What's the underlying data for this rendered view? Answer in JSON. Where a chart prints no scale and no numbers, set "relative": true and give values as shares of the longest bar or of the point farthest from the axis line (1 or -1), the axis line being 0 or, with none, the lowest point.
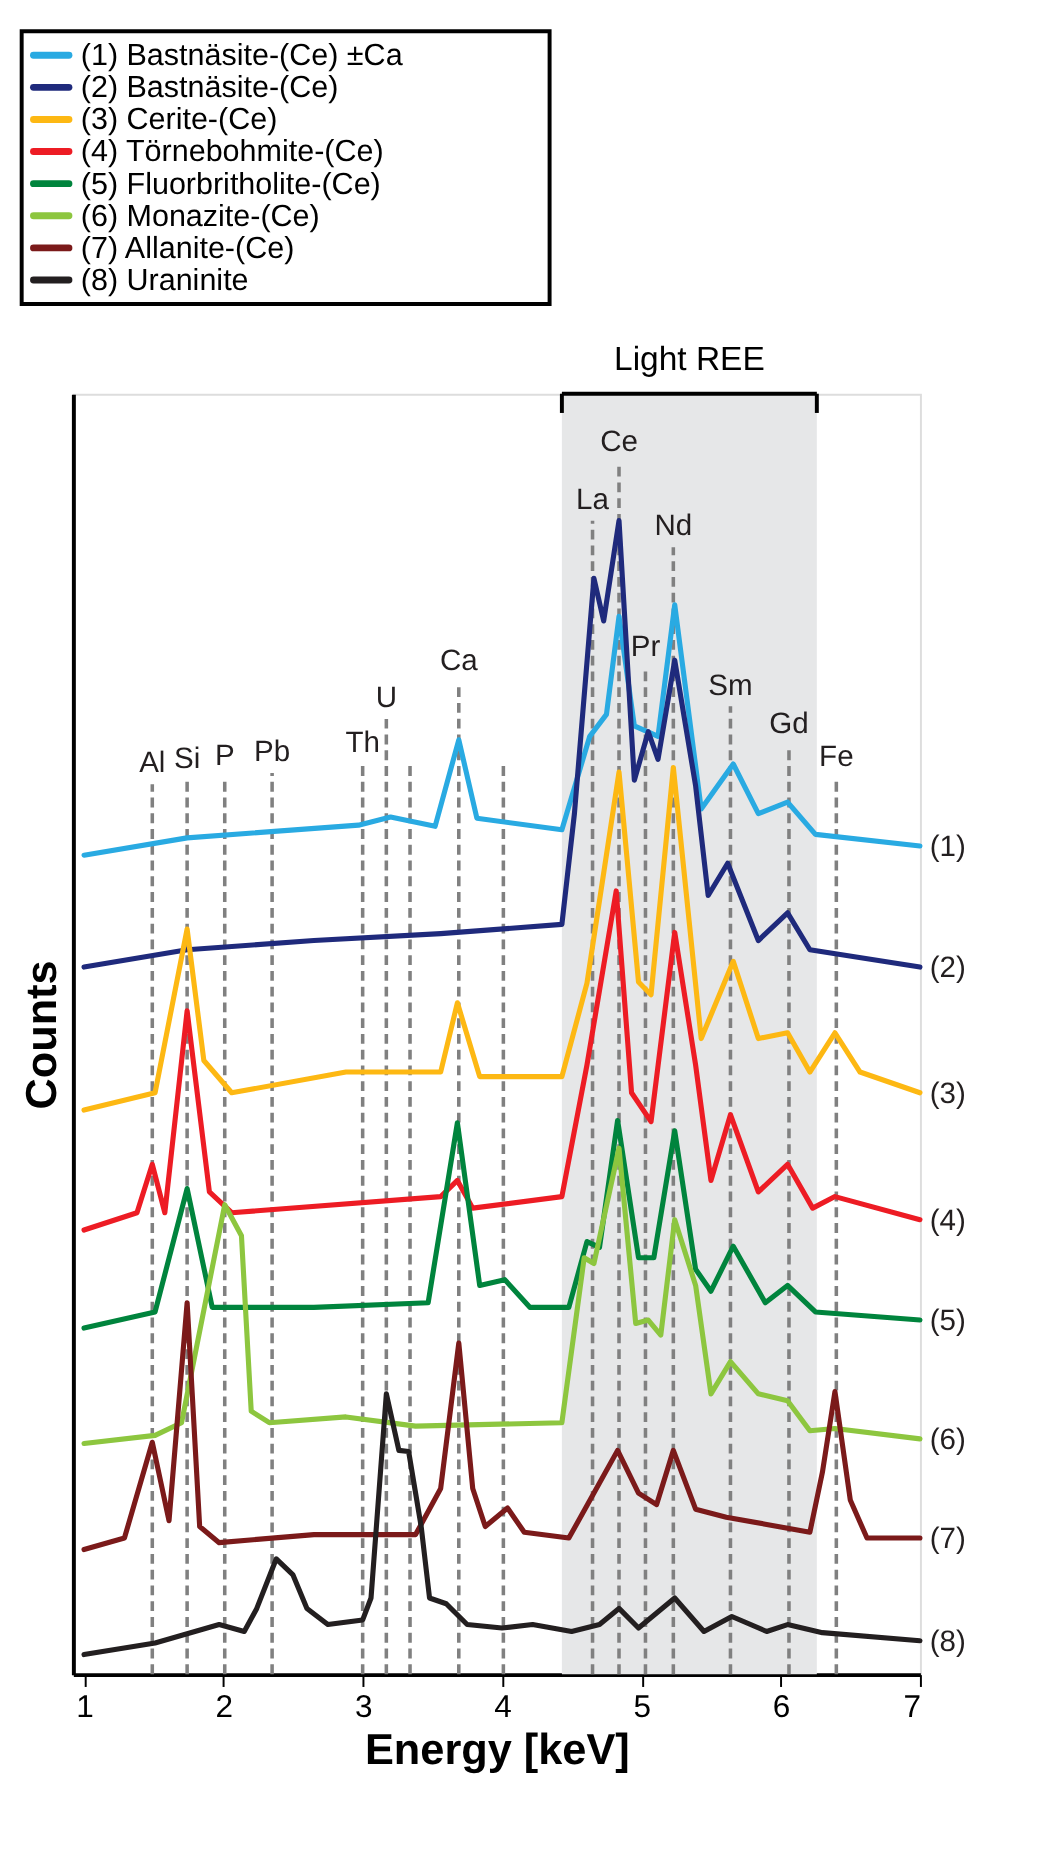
{
  "chart_data": {
    "type": "line",
    "relative": true,
    "xlabel": "Energy [keV]",
    "ylabel": "Counts",
    "xlim": [
      0.92,
      7
    ],
    "xticks": [
      1,
      2,
      3,
      4,
      5,
      6,
      7
    ],
    "grid": false,
    "legend": "top left",
    "line_style": "solid",
    "marker": "none",
    "series": [
      {
        "name": "(1) Bastnäsite-(Ce) ±Ca",
        "color": "#29aae2",
        "x": [
          1.0,
          1.74,
          2.97,
          3.2,
          3.52,
          3.69,
          3.82,
          4.43,
          4.63,
          4.75,
          4.84,
          4.95,
          5.12,
          5.24,
          5.43,
          5.66,
          5.84,
          6.05,
          6.25,
          7.0
        ],
        "values": [
          0.71,
          0.725,
          0.736,
          0.743,
          0.735,
          0.81,
          0.742,
          0.732,
          0.813,
          0.832,
          0.917,
          0.822,
          0.813,
          0.927,
          0.75,
          0.789,
          0.746,
          0.756,
          0.728,
          0.718
        ]
      },
      {
        "name": "(2) Bastnäsite-(Ce)",
        "color": "#1f2a7c",
        "x": [
          1.0,
          1.74,
          2.65,
          3.56,
          4.43,
          4.52,
          4.66,
          4.73,
          4.84,
          4.95,
          5.05,
          5.12,
          5.24,
          5.39,
          5.48,
          5.62,
          5.84,
          6.05,
          6.21,
          7.0
        ],
        "values": [
          0.613,
          0.628,
          0.636,
          0.642,
          0.65,
          0.746,
          0.95,
          0.913,
          1.0,
          0.775,
          0.817,
          0.793,
          0.879,
          0.77,
          0.675,
          0.703,
          0.636,
          0.66,
          0.628,
          0.613
        ]
      },
      {
        "name": "(3) Cerite-(Ce)",
        "color": "#fdb813",
        "x": [
          1.0,
          1.51,
          1.74,
          1.86,
          2.06,
          2.88,
          3.56,
          3.68,
          3.84,
          4.43,
          4.61,
          4.84,
          4.98,
          5.07,
          5.23,
          5.43,
          5.66,
          5.84,
          6.05,
          6.21,
          6.39,
          6.57,
          7.0
        ],
        "values": [
          0.489,
          0.504,
          0.646,
          0.532,
          0.504,
          0.522,
          0.522,
          0.582,
          0.518,
          0.518,
          0.599,
          0.782,
          0.6,
          0.589,
          0.786,
          0.551,
          0.618,
          0.551,
          0.556,
          0.522,
          0.556,
          0.522,
          0.504
        ]
      },
      {
        "name": "(4) Törnebohmite-(Ce)",
        "color": "#ed1c24",
        "x": [
          1.0,
          1.38,
          1.49,
          1.58,
          1.74,
          1.9,
          2.06,
          3.56,
          3.68,
          3.79,
          4.43,
          4.61,
          4.82,
          4.93,
          5.07,
          5.24,
          5.39,
          5.5,
          5.64,
          5.84,
          6.05,
          6.23,
          6.39,
          7.0
        ],
        "values": [
          0.385,
          0.4,
          0.442,
          0.4,
          0.575,
          0.418,
          0.4,
          0.414,
          0.428,
          0.404,
          0.414,
          0.528,
          0.679,
          0.504,
          0.479,
          0.643,
          0.528,
          0.428,
          0.485,
          0.418,
          0.442,
          0.404,
          0.414,
          0.394
        ]
      },
      {
        "name": "(5) Fluorbritholite-(Ce)",
        "color": "#00843d",
        "x": [
          1.0,
          1.51,
          1.74,
          1.92,
          2.65,
          3.47,
          3.68,
          3.84,
          4.02,
          4.2,
          4.48,
          4.61,
          4.7,
          4.83,
          4.98,
          5.09,
          5.24,
          5.39,
          5.5,
          5.66,
          5.89,
          6.05,
          6.25,
          7.0
        ],
        "values": [
          0.3,
          0.314,
          0.421,
          0.318,
          0.318,
          0.322,
          0.478,
          0.337,
          0.342,
          0.318,
          0.318,
          0.375,
          0.37,
          0.48,
          0.361,
          0.361,
          0.471,
          0.351,
          0.332,
          0.371,
          0.322,
          0.337,
          0.314,
          0.307
        ]
      },
      {
        "name": "(6) Monazite-(Ce)",
        "color": "#8dc63f",
        "x": [
          1.0,
          1.51,
          1.7,
          2.01,
          2.13,
          2.2,
          2.33,
          2.88,
          3.38,
          4.43,
          4.59,
          4.66,
          4.84,
          4.96,
          5.05,
          5.14,
          5.24,
          5.39,
          5.5,
          5.64,
          5.84,
          6.05,
          6.21,
          6.39,
          7.0
        ],
        "values": [
          0.2,
          0.207,
          0.218,
          0.407,
          0.38,
          0.228,
          0.218,
          0.223,
          0.215,
          0.218,
          0.361,
          0.356,
          0.456,
          0.304,
          0.307,
          0.294,
          0.394,
          0.337,
          0.243,
          0.271,
          0.243,
          0.237,
          0.211,
          0.213,
          0.204
        ]
      },
      {
        "name": "(7) Allanite-(Ce)",
        "color": "#7b1a1a",
        "x": [
          1.0,
          1.29,
          1.49,
          1.61,
          1.74,
          1.83,
          1.97,
          2.65,
          3.38,
          3.56,
          3.69,
          3.79,
          3.88,
          4.04,
          4.16,
          4.48,
          4.66,
          4.83,
          4.98,
          5.11,
          5.23,
          5.39,
          5.61,
          5.89,
          6.21,
          6.3,
          6.39,
          6.5,
          6.62,
          7.0
        ],
        "values": [
          0.108,
          0.118,
          0.201,
          0.133,
          0.322,
          0.128,
          0.114,
          0.121,
          0.121,
          0.161,
          0.287,
          0.161,
          0.128,
          0.144,
          0.123,
          0.118,
          0.157,
          0.194,
          0.157,
          0.147,
          0.194,
          0.143,
          0.136,
          0.13,
          0.123,
          0.175,
          0.245,
          0.151,
          0.118,
          0.118
        ]
      },
      {
        "name": "(8) Uraninite",
        "color": "#231f20",
        "x": [
          1.0,
          1.51,
          1.97,
          2.15,
          2.24,
          2.38,
          2.5,
          2.6,
          2.75,
          3.0,
          3.06,
          3.17,
          3.26,
          3.33,
          3.42,
          3.48,
          3.6,
          3.75,
          4.0,
          4.22,
          4.5,
          4.7,
          4.84,
          4.98,
          5.24,
          5.45,
          5.65,
          5.9,
          6.05,
          6.3,
          7.0
        ],
        "values": [
          0.017,
          0.027,
          0.043,
          0.037,
          0.057,
          0.1,
          0.086,
          0.057,
          0.043,
          0.047,
          0.066,
          0.243,
          0.194,
          0.193,
          0.128,
          0.066,
          0.061,
          0.043,
          0.04,
          0.043,
          0.037,
          0.043,
          0.057,
          0.04,
          0.066,
          0.037,
          0.05,
          0.037,
          0.043,
          0.036,
          0.029
        ]
      }
    ],
    "bands": [
      {
        "axis": "x",
        "from": 4.43,
        "to": 6.26,
        "label": "Light REE",
        "color": "#e6e7e8"
      }
    ],
    "ref_lines": [
      {
        "axis": "x",
        "value": 1.49,
        "label": "Al",
        "color": "#808080",
        "line_style": "dashed"
      },
      {
        "axis": "x",
        "value": 1.74,
        "label": "Si",
        "color": "#808080",
        "line_style": "dashed"
      },
      {
        "axis": "x",
        "value": 2.01,
        "label": "P",
        "color": "#808080",
        "line_style": "dashed"
      },
      {
        "axis": "x",
        "value": 2.35,
        "label": "Pb",
        "color": "#808080",
        "line_style": "dashed"
      },
      {
        "axis": "x",
        "value": 3.0,
        "label": "Th",
        "color": "#808080",
        "line_style": "dashed"
      },
      {
        "axis": "x",
        "value": 3.17,
        "label": "U",
        "color": "#808080",
        "line_style": "dashed"
      },
      {
        "axis": "x",
        "value": 3.34,
        "label": null,
        "color": "#808080",
        "line_style": "dashed"
      },
      {
        "axis": "x",
        "value": 3.69,
        "label": "Ca",
        "color": "#808080",
        "line_style": "dashed"
      },
      {
        "axis": "x",
        "value": 4.01,
        "label": null,
        "color": "#808080",
        "line_style": "dashed"
      },
      {
        "axis": "x",
        "value": 4.65,
        "label": "La",
        "color": "#808080",
        "line_style": "dashed"
      },
      {
        "axis": "x",
        "value": 4.84,
        "label": "Ce",
        "color": "#808080",
        "line_style": "dashed"
      },
      {
        "axis": "x",
        "value": 5.03,
        "label": "Pr",
        "color": "#808080",
        "line_style": "dashed"
      },
      {
        "axis": "x",
        "value": 5.23,
        "label": "Nd",
        "color": "#808080",
        "line_style": "dashed"
      },
      {
        "axis": "x",
        "value": 5.64,
        "label": "Sm",
        "color": "#808080",
        "line_style": "dashed"
      },
      {
        "axis": "x",
        "value": 6.06,
        "label": "Gd",
        "color": "#808080",
        "line_style": "dashed"
      },
      {
        "axis": "x",
        "value": 6.4,
        "label": "Fe",
        "color": "#808080",
        "line_style": "dashed"
      }
    ],
    "annotations": [
      "(1)",
      "(2)",
      "(3)",
      "(4)",
      "(5)",
      "(6)",
      "(7)",
      "(8)"
    ]
  }
}
